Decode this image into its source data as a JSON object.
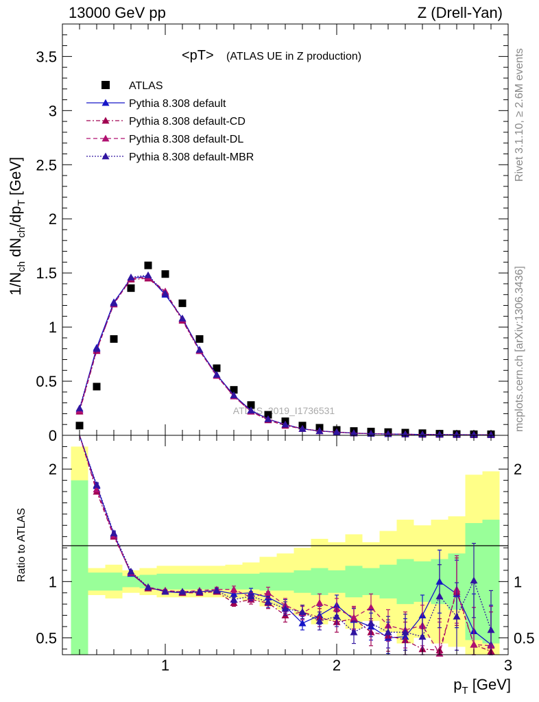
{
  "header": {
    "left": "13000 GeV pp",
    "right": "Z (Drell-Yan)"
  },
  "plot_title": "<pT>",
  "plot_subtitle": "(ATLAS UE in Z production)",
  "side_labels": {
    "rivet": "Rivet 3.1.10, ≥ 2.6M events",
    "mcplots": "mcplots.cern.ch [arXiv:1306.3436]"
  },
  "watermark": "ATLAS_2019_I1736531",
  "axes": {
    "xlabel": "p_T [GeV]",
    "ylabel_main": "1/N_ch dN_ch/dp_T [GeV]",
    "ylabel_ratio": "Ratio to ATLAS",
    "main_ticks": [
      "0",
      "0.5",
      "1",
      "1.5",
      "2",
      "2.5",
      "3",
      "3.5"
    ],
    "ratio_ticks": [
      "0.5",
      "1",
      "2"
    ],
    "x_ticks": [
      "1",
      "2",
      "3"
    ]
  },
  "colors": {
    "atlas": "#000000",
    "default": "#1515c8",
    "cd": "#a00050",
    "dl": "#b01070",
    "mbr": "#3015a0",
    "band_inner": "#99ff99",
    "band_outer": "#ffff88"
  },
  "chart_data": {
    "type": "scatter",
    "x": [
      0.5,
      0.6,
      0.7,
      0.8,
      0.9,
      1.0,
      1.1,
      1.2,
      1.3,
      1.4,
      1.5,
      1.6,
      1.7,
      1.8,
      1.9,
      2.0,
      2.1,
      2.2,
      2.3,
      2.4,
      2.5,
      2.6,
      2.7,
      2.8,
      2.9
    ],
    "xlim": [
      0.4,
      3.0
    ],
    "ylim_main": [
      0,
      3.8
    ],
    "ylim_ratio": [
      0.35,
      2.3
    ],
    "legend": [
      "ATLAS",
      "Pythia 8.308 default",
      "Pythia 8.308 default-CD",
      "Pythia 8.308 default-DL",
      "Pythia 8.308 default-MBR"
    ],
    "series": [
      {
        "name": "ATLAS",
        "values": [
          0.09,
          0.45,
          0.89,
          1.36,
          1.57,
          1.49,
          1.22,
          0.89,
          0.62,
          0.42,
          0.28,
          0.19,
          0.13,
          0.09,
          0.07,
          0.05,
          0.04,
          0.035,
          0.03,
          0.025,
          0.02,
          0.015,
          0.012,
          0.01,
          0.01
        ]
      },
      {
        "name": "Pythia 8.308 default",
        "values": [
          0.24,
          0.81,
          1.23,
          1.45,
          1.47,
          1.3,
          1.08,
          0.79,
          0.56,
          0.37,
          0.23,
          0.15,
          0.1,
          0.06,
          0.04,
          0.03,
          0.02,
          0.015,
          0.012,
          0.01,
          0.008,
          0.007,
          0.006,
          0.005,
          0.004
        ],
        "ratio": [
          2.6,
          1.85,
          1.42,
          1.07,
          0.95,
          0.91,
          0.9,
          0.91,
          0.92,
          0.89,
          0.9,
          0.86,
          0.78,
          0.63,
          0.7,
          0.79,
          0.66,
          0.6,
          0.5,
          0.51,
          0.7,
          1.0,
          0.89,
          0.56,
          0.44
        ],
        "ratio_err": [
          0,
          0.02,
          0.02,
          0.01,
          0.01,
          0.01,
          0.01,
          0.01,
          0.02,
          0.03,
          0.04,
          0.05,
          0.06,
          0.06,
          0.08,
          0.09,
          0.1,
          0.12,
          0.14,
          0.16,
          0.18,
          0.28,
          0.3,
          0.33,
          0.35
        ]
      },
      {
        "name": "Pythia 8.308 default-CD",
        "values": [
          0.22,
          0.78,
          1.22,
          1.44,
          1.45,
          1.32,
          1.06,
          0.78,
          0.55,
          0.36,
          0.22,
          0.14,
          0.09,
          0.06,
          0.04,
          0.03,
          0.02,
          0.015,
          0.012,
          0.01,
          0.007,
          0.006,
          0.005,
          0.004,
          0.004
        ],
        "ratio": [
          2.5,
          1.8,
          1.4,
          1.08,
          0.94,
          0.92,
          0.9,
          0.9,
          0.91,
          0.81,
          0.84,
          0.81,
          0.7,
          0.73,
          0.68,
          0.64,
          0.67,
          0.55,
          0.52,
          0.48,
          0.4,
          0.39,
          0.91,
          0.44,
          0.38
        ],
        "ratio_err": [
          0,
          0.02,
          0.02,
          0.01,
          0.01,
          0.01,
          0.01,
          0.01,
          0.02,
          0.03,
          0.04,
          0.05,
          0.06,
          0.06,
          0.08,
          0.09,
          0.1,
          0.12,
          0.14,
          0.16,
          0.18,
          0.28,
          0.3,
          0.33,
          0.35
        ]
      },
      {
        "name": "Pythia 8.308 default-DL",
        "values": [
          0.23,
          0.79,
          1.21,
          1.45,
          1.46,
          1.33,
          1.07,
          0.78,
          0.55,
          0.36,
          0.22,
          0.15,
          0.1,
          0.06,
          0.04,
          0.03,
          0.02,
          0.015,
          0.012,
          0.01,
          0.007,
          0.006,
          0.005,
          0.004,
          0.004
        ],
        "ratio": [
          2.5,
          1.82,
          1.41,
          1.08,
          0.95,
          0.92,
          0.91,
          0.92,
          0.93,
          0.93,
          0.86,
          0.9,
          0.79,
          0.72,
          0.81,
          0.76,
          0.68,
          0.77,
          0.61,
          0.57,
          0.61,
          0.36,
          0.93,
          0.44,
          0.43
        ],
        "ratio_err": [
          0,
          0.02,
          0.02,
          0.01,
          0.01,
          0.01,
          0.01,
          0.01,
          0.02,
          0.03,
          0.04,
          0.05,
          0.06,
          0.06,
          0.08,
          0.09,
          0.1,
          0.12,
          0.14,
          0.16,
          0.18,
          0.28,
          0.3,
          0.33,
          0.35
        ]
      },
      {
        "name": "Pythia 8.308 default-MBR",
        "values": [
          0.25,
          0.8,
          1.22,
          1.46,
          1.48,
          1.31,
          1.08,
          0.79,
          0.56,
          0.37,
          0.23,
          0.15,
          0.1,
          0.06,
          0.04,
          0.03,
          0.02,
          0.015,
          0.012,
          0.01,
          0.008,
          0.007,
          0.006,
          0.005,
          0.004
        ],
        "ratio": [
          2.55,
          1.86,
          1.43,
          1.09,
          0.95,
          0.91,
          0.91,
          0.91,
          0.92,
          0.84,
          0.87,
          0.82,
          0.76,
          0.73,
          0.65,
          0.69,
          0.55,
          0.63,
          0.55,
          0.55,
          0.51,
          0.87,
          0.69,
          1.01,
          0.57
        ],
        "ratio_err": [
          0,
          0.02,
          0.02,
          0.01,
          0.01,
          0.01,
          0.01,
          0.01,
          0.02,
          0.03,
          0.04,
          0.05,
          0.06,
          0.06,
          0.08,
          0.09,
          0.1,
          0.12,
          0.14,
          0.16,
          0.18,
          0.28,
          0.3,
          0.33,
          0.35
        ]
      }
    ],
    "band_inner": [
      1.9,
      1.08,
      1.08,
      1.05,
      1.06,
      1.07,
      1.07,
      1.07,
      1.07,
      1.07,
      1.07,
      1.08,
      1.08,
      1.1,
      1.12,
      1.1,
      1.14,
      1.12,
      1.15,
      1.2,
      1.18,
      1.2,
      1.25,
      1.52,
      1.55
    ],
    "band_outer": [
      2.2,
      1.12,
      1.15,
      1.1,
      1.12,
      1.14,
      1.14,
      1.14,
      1.14,
      1.15,
      1.17,
      1.22,
      1.25,
      1.3,
      1.38,
      1.35,
      1.42,
      1.35,
      1.45,
      1.55,
      1.5,
      1.55,
      1.58,
      1.95,
      1.98
    ]
  }
}
